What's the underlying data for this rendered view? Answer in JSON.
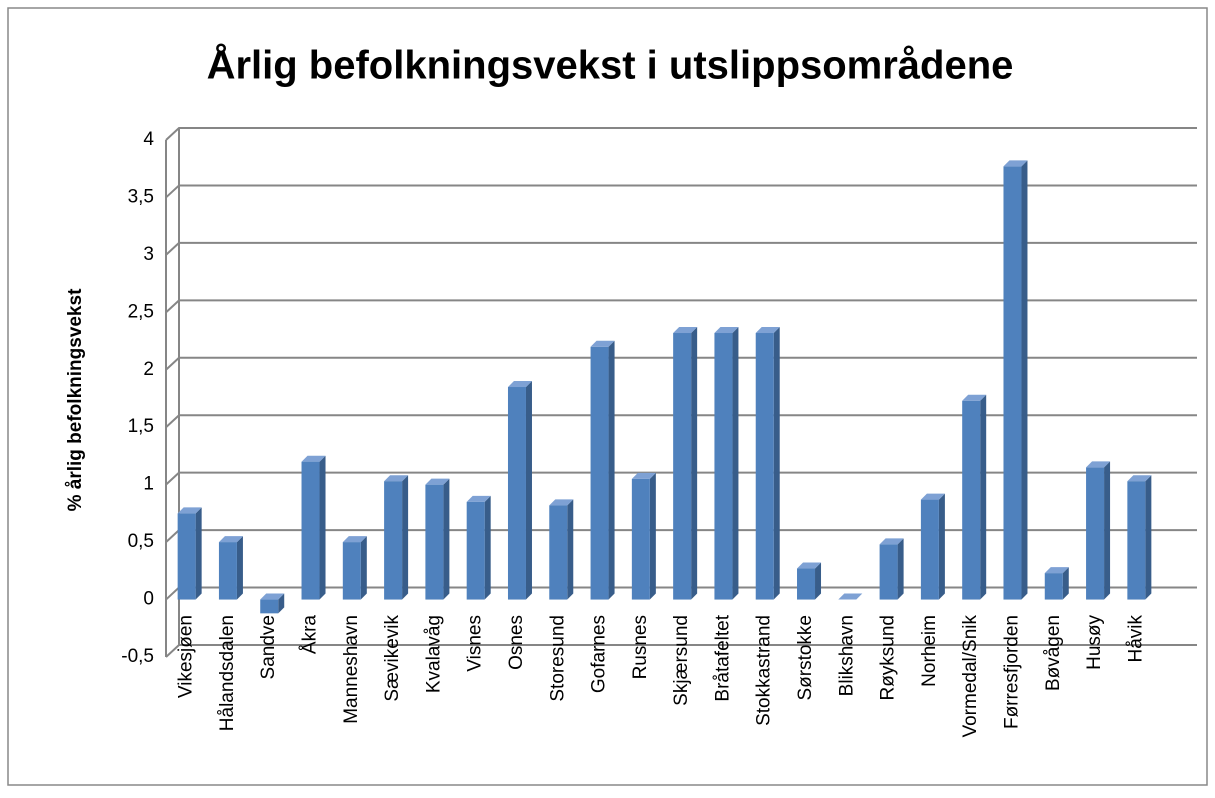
{
  "chart_data": {
    "type": "bar",
    "title": "Årlig befolkningsvekst i utslippsområdene",
    "y_label": "% årlig befolkningsvekst",
    "categories": [
      "Vikesjøen",
      "Hålandsdalen",
      "Sandve",
      "Åkra",
      "Manneshavn",
      "Sævikevik",
      "Kvalavåg",
      "Visnes",
      "Osnes",
      "Storesund",
      "Gofarnes",
      "Rusnes",
      "Skjærsund",
      "Bråtafeltet",
      "Stokkastrand",
      "Sørstokke",
      "Blikshavn",
      "Røyksund",
      "Norheim",
      "Vormedal/Snik",
      "Førresfjorden",
      "Bøvågen",
      "Husøy",
      "Håvik"
    ],
    "values": [
      0.75,
      0.5,
      -0.12,
      1.2,
      0.5,
      1.03,
      1.0,
      0.85,
      1.85,
      0.82,
      2.2,
      1.05,
      2.32,
      2.32,
      2.32,
      0.27,
      0,
      0.48,
      0.87,
      1.73,
      3.77,
      0.23,
      1.15,
      1.03
    ],
    "color": "#4f81bd",
    "ylim": [
      -0.5,
      4
    ],
    "yticks": [
      {
        "value": -0.5,
        "label": "-0,5"
      },
      0,
      {
        "value": 0.5,
        "label": "0,5"
      },
      1,
      {
        "value": 1.5,
        "label": "1,5"
      },
      2,
      {
        "value": 2.5,
        "label": "2,5"
      },
      3,
      {
        "value": 3.5,
        "label": "3,5"
      },
      4
    ],
    "grid": true
  }
}
